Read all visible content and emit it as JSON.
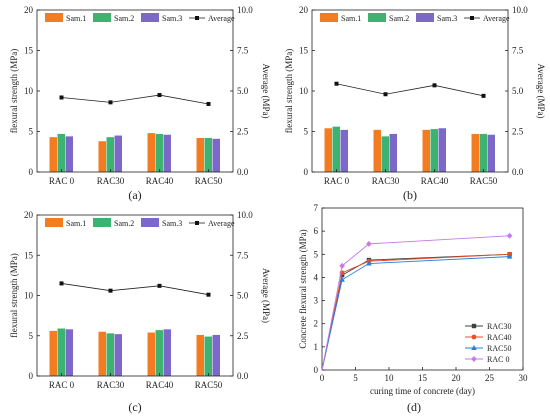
{
  "chart_data": [
    {
      "type": "bar",
      "panel_label": "(a)",
      "categories": [
        "RAC 0",
        "RAC30",
        "RAC40",
        "RAC50"
      ],
      "series": [
        {
          "name": "Sam.1",
          "color": "#f47c20",
          "values": [
            4.3,
            3.8,
            4.8,
            4.2
          ]
        },
        {
          "name": "Sam.2",
          "color": "#3cb371",
          "values": [
            4.7,
            4.3,
            4.7,
            4.2
          ]
        },
        {
          "name": "Sam.3",
          "color": "#7b68c8",
          "values": [
            4.4,
            4.5,
            4.6,
            4.1
          ]
        }
      ],
      "average": {
        "name": "Average",
        "values": [
          4.6,
          4.3,
          4.75,
          4.2
        ]
      },
      "ylabel": "flexural strength (MPa)",
      "ylim": [
        0,
        20
      ],
      "yticks": [
        "0",
        "5",
        "10",
        "15",
        "20"
      ],
      "y2label": "Average (MPa)",
      "y2lim": [
        0,
        10
      ],
      "y2ticks": [
        "0.0",
        "2.5",
        "5.0",
        "7.5",
        "10.0"
      ]
    },
    {
      "type": "bar",
      "panel_label": "(b)",
      "categories": [
        "RAC 0",
        "RAC30",
        "RAC40",
        "RAC50"
      ],
      "series": [
        {
          "name": "Sam.1",
          "color": "#f47c20",
          "values": [
            5.4,
            5.2,
            5.2,
            4.7
          ]
        },
        {
          "name": "Sam.2",
          "color": "#3cb371",
          "values": [
            5.6,
            4.4,
            5.3,
            4.7
          ]
        },
        {
          "name": "Sam.3",
          "color": "#7b68c8",
          "values": [
            5.2,
            4.7,
            5.4,
            4.6
          ]
        }
      ],
      "average": {
        "name": "Average",
        "values": [
          5.45,
          4.8,
          5.35,
          4.7
        ]
      },
      "ylabel": "flexural strength (MPa)",
      "ylim": [
        0,
        20
      ],
      "yticks": [
        "0",
        "5",
        "10",
        "15",
        "20"
      ],
      "y2label": "Average (MPa)",
      "y2lim": [
        0,
        10
      ],
      "y2ticks": [
        "0.0",
        "2.5",
        "5.0",
        "7.5",
        "10.0"
      ]
    },
    {
      "type": "bar",
      "panel_label": "(c)",
      "categories": [
        "RAC 0",
        "RAC30",
        "RAC40",
        "RAC50"
      ],
      "series": [
        {
          "name": "Sam.1",
          "color": "#f47c20",
          "values": [
            5.6,
            5.5,
            5.4,
            5.1
          ]
        },
        {
          "name": "Sam.2",
          "color": "#3cb371",
          "values": [
            5.9,
            5.3,
            5.7,
            4.9
          ]
        },
        {
          "name": "Sam.3",
          "color": "#7b68c8",
          "values": [
            5.8,
            5.2,
            5.8,
            5.1
          ]
        }
      ],
      "average": {
        "name": "Average",
        "values": [
          5.75,
          5.3,
          5.6,
          5.05
        ]
      },
      "ylabel": "flexural strength (MPa)",
      "ylim": [
        0,
        20
      ],
      "yticks": [
        "0",
        "5",
        "10",
        "15",
        "20"
      ],
      "y2label": "Average (MPa)",
      "y2lim": [
        0,
        10
      ],
      "y2ticks": [
        "0.0",
        "2.5",
        "5.0",
        "7.5",
        "10.0"
      ]
    },
    {
      "type": "line",
      "panel_label": "(d)",
      "xlabel": "curing time of concrete (day)",
      "ylabel": "Concrete flexural strength (MPa)",
      "xlim": [
        0,
        30
      ],
      "ylim": [
        0,
        7
      ],
      "xticks": [
        "0",
        "5",
        "10",
        "15",
        "20",
        "25",
        "30"
      ],
      "yticks": [
        "0",
        "1",
        "2",
        "3",
        "4",
        "5",
        "6",
        "7"
      ],
      "legend_position": "bottom-right",
      "series": [
        {
          "name": "RAC30",
          "color": "#404040",
          "marker": "square",
          "x": [
            0,
            3,
            7,
            28
          ],
          "y": [
            0,
            4.1,
            4.75,
            5.0
          ]
        },
        {
          "name": "RAC40",
          "color": "#e8502a",
          "marker": "circle",
          "x": [
            0,
            3,
            7,
            28
          ],
          "y": [
            0,
            4.2,
            4.7,
            5.0
          ]
        },
        {
          "name": "RAC50",
          "color": "#2a7fd4",
          "marker": "triangle",
          "x": [
            0,
            3,
            7,
            28
          ],
          "y": [
            0,
            3.9,
            4.6,
            4.9
          ]
        },
        {
          "name": "RAC 0",
          "color": "#c77ae8",
          "marker": "diamond",
          "x": [
            0,
            3,
            7,
            28
          ],
          "y": [
            0,
            4.5,
            5.45,
            5.8
          ]
        }
      ]
    }
  ]
}
